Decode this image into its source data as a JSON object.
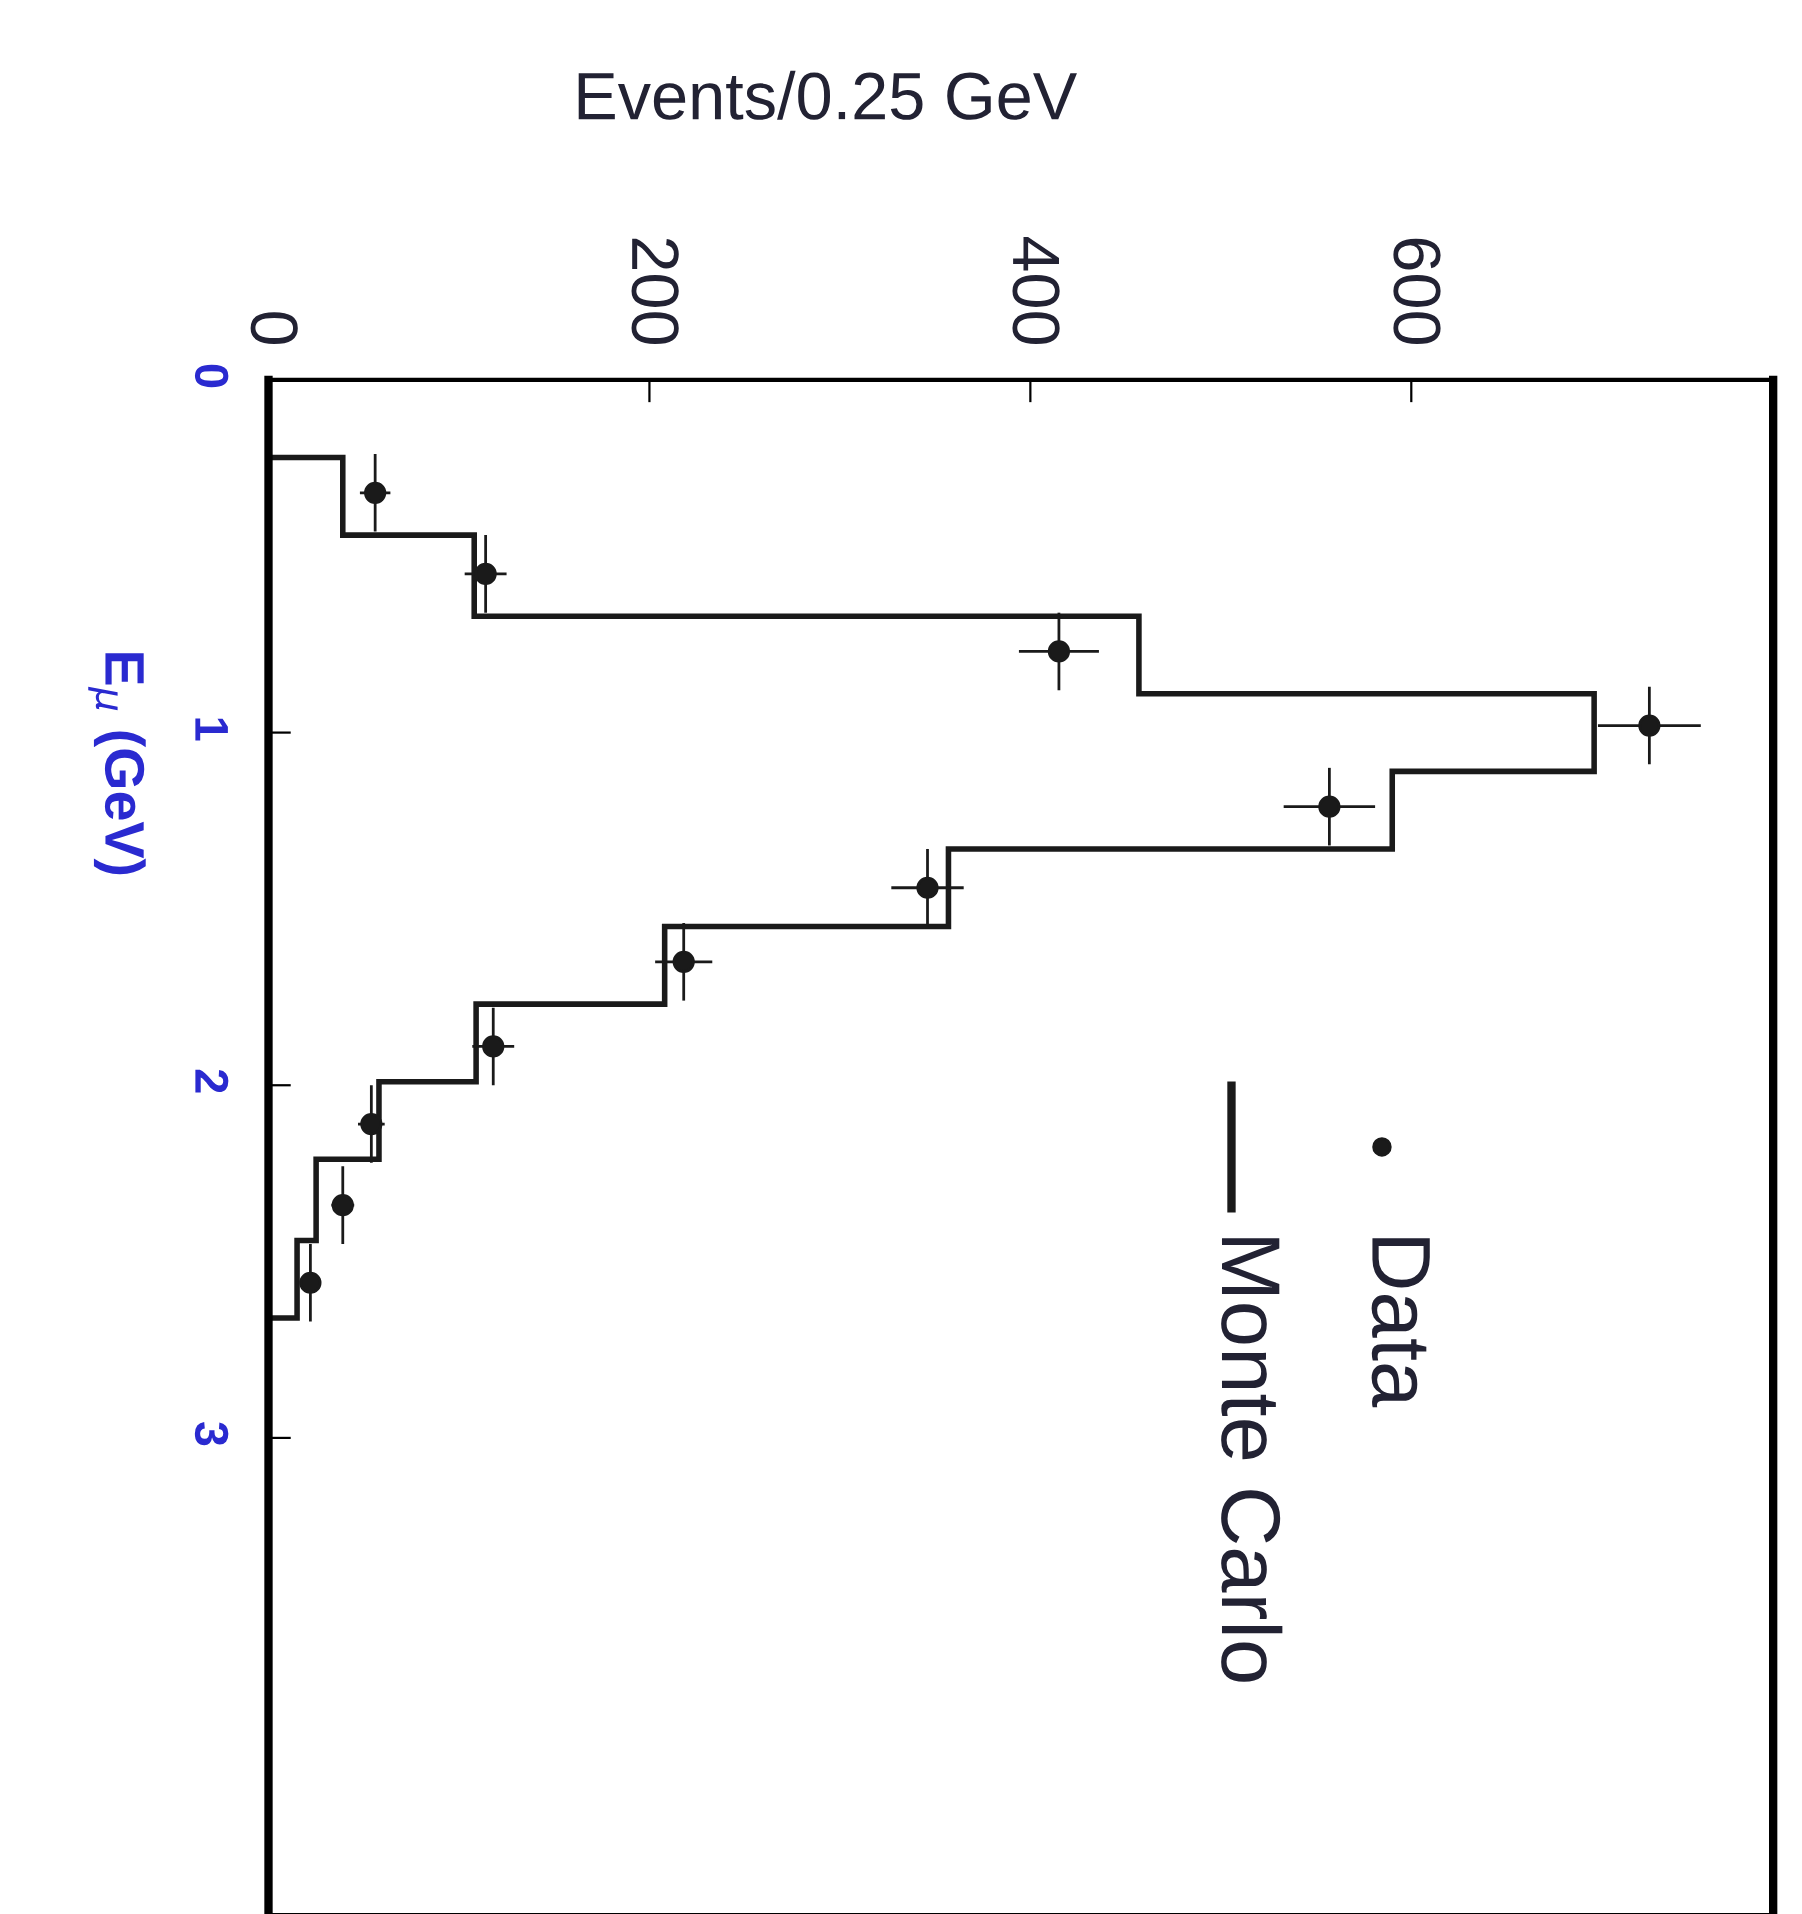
{
  "chart_data": {
    "type": "histogram",
    "orientation": "horizontal",
    "xlabel": "Events/0.25 GeV",
    "ylabel": "E$_{μ}$ (GeV)",
    "xlim": [
      0,
      790
    ],
    "xticks": [
      0,
      200,
      400,
      600
    ],
    "ylim": [
      4.35,
      0
    ],
    "yticks": [
      0,
      1,
      2,
      3
    ],
    "legend": "bottom right",
    "series": [
      {
        "name": "Monte Carlo",
        "color": "#1a1a1a",
        "bins": [
          0.22,
          0.44,
          0.67,
          0.89,
          1.11,
          1.33,
          1.55,
          1.77,
          1.99,
          2.21,
          2.44,
          2.66
        ],
        "values": [
          39,
          108,
          457,
          696,
          590,
          357,
          208,
          109,
          58,
          25,
          15
        ]
      },
      {
        "name": "Data",
        "type": "scatter",
        "color": "#1a1a1a",
        "marker": "circle",
        "x": [
          0.32,
          0.55,
          0.77,
          0.98,
          1.21,
          1.44,
          1.65,
          1.89,
          2.11,
          2.34,
          2.56
        ],
        "values": [
          56,
          114,
          415,
          725,
          557,
          346,
          218,
          118,
          54,
          39,
          22
        ],
        "errors": [
          8,
          11,
          21,
          27,
          24,
          19,
          15,
          11,
          7,
          6,
          5
        ],
        "xerrors": [
          0.11,
          0.11,
          0.11,
          0.11,
          0.11,
          0.11,
          0.11,
          0.11,
          0.11,
          0.11,
          0.11
        ]
      }
    ]
  }
}
